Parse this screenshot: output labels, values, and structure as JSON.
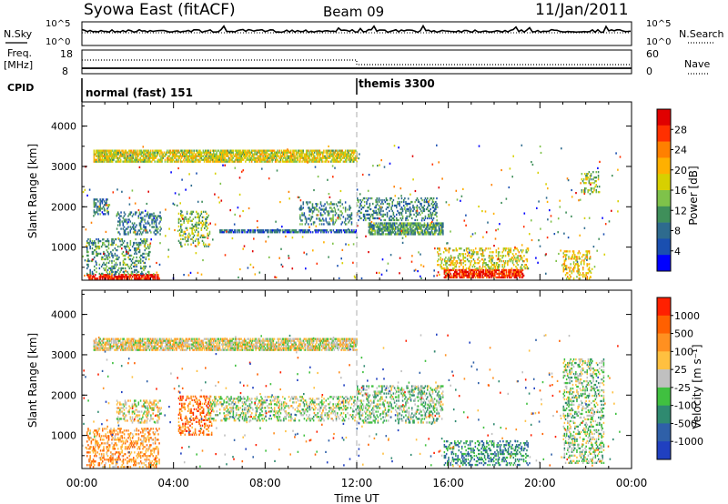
{
  "header": {
    "station": "Syowa East (fitACF)",
    "beam": "Beam 09",
    "date": "11/Jan/2011"
  },
  "top_panels": {
    "nsky_label": "N.Sky",
    "nsearch_label": "N.Search",
    "noise_ticks": [
      "10^5",
      "10^0"
    ],
    "freq_label_1": "Freq.",
    "freq_label_2": "[MHz]",
    "freq_ticks": [
      "18",
      "8"
    ],
    "nave_label": "Nave",
    "nave_ticks": [
      "60",
      "0"
    ],
    "cpid_label": "CPID",
    "cpid_segments": [
      {
        "name": "normal (fast) 151",
        "start_hour": 0
      },
      {
        "name": "themis 3300",
        "start_hour": 12
      }
    ]
  },
  "chart_data": [
    {
      "type": "heatmap",
      "quantity": "power",
      "xlabel": "",
      "ylabel": "Slant Range [km]",
      "xlim": [
        0,
        24
      ],
      "ylim": [
        180,
        4600
      ],
      "yticks": [
        "1000",
        "2000",
        "3000",
        "4000"
      ],
      "colorbar_label": "Power [dB]",
      "colorbar_ticks": [
        "28",
        "24",
        "20",
        "16",
        "12",
        "8",
        "4"
      ],
      "colorbar_colors": [
        "#0000ff",
        "#1a4fb0",
        "#2e6b8e",
        "#3f8f5a",
        "#7fc24a",
        "#d7d000",
        "#ffb000",
        "#ff8000",
        "#ff3000",
        "#e00000"
      ],
      "echo_regions": [
        {
          "t0": 0.2,
          "t1": 3.4,
          "r0": 200,
          "r1": 320,
          "level": 0.92
        },
        {
          "t0": 0.2,
          "t1": 3.0,
          "r0": 320,
          "r1": 1200,
          "level": 0.35
        },
        {
          "t0": 1.5,
          "t1": 3.5,
          "r0": 1300,
          "r1": 1900,
          "level": 0.28
        },
        {
          "t0": 4.2,
          "t1": 5.6,
          "r0": 1000,
          "r1": 1900,
          "level": 0.45
        },
        {
          "t0": 0.5,
          "t1": 1.2,
          "r0": 1800,
          "r1": 2200,
          "level": 0.25
        },
        {
          "t0": 6.0,
          "t1": 12.0,
          "r0": 1350,
          "r1": 1450,
          "level": 0.22
        },
        {
          "t0": 9.5,
          "t1": 11.8,
          "r0": 1550,
          "r1": 2150,
          "level": 0.3
        },
        {
          "t0": 12.0,
          "t1": 15.5,
          "r0": 1650,
          "r1": 2250,
          "level": 0.3
        },
        {
          "t0": 12.5,
          "t1": 15.8,
          "r0": 1300,
          "r1": 1600,
          "level": 0.35
        },
        {
          "t0": 15.8,
          "t1": 19.3,
          "r0": 230,
          "r1": 450,
          "level": 0.9
        },
        {
          "t0": 15.5,
          "t1": 19.5,
          "r0": 450,
          "r1": 1000,
          "level": 0.55
        },
        {
          "t0": 21.0,
          "t1": 22.2,
          "r0": 200,
          "r1": 900,
          "level": 0.6
        },
        {
          "t0": 21.8,
          "t1": 22.6,
          "r0": 2300,
          "r1": 2900,
          "level": 0.45
        },
        {
          "t0": 0.5,
          "t1": 12.0,
          "r0": 3100,
          "r1": 3400,
          "level": 0.55
        }
      ]
    },
    {
      "type": "heatmap",
      "quantity": "velocity",
      "xlabel": "Time UT",
      "ylabel": "Slant Range [km]",
      "xlim": [
        0,
        24
      ],
      "ylim": [
        180,
        4600
      ],
      "xticks": [
        "00:00",
        "04:00",
        "08:00",
        "12:00",
        "16:00",
        "20:00",
        "00:00"
      ],
      "yticks": [
        "1000",
        "2000",
        "3000",
        "4000"
      ],
      "colorbar_label": "Velocity [m s⁻¹]",
      "colorbar_ticks": [
        "1000",
        "500",
        "100",
        "25",
        "-25",
        "-100",
        "-500",
        "-1000"
      ],
      "colorbar_colors": [
        "#2040c0",
        "#2f60a8",
        "#2f8a70",
        "#40c040",
        "#c0c0c0",
        "#ffc040",
        "#ff9020",
        "#ff6000",
        "#ff2000"
      ],
      "echo_regions": [
        {
          "t0": 0.2,
          "t1": 3.4,
          "r0": 200,
          "r1": 1200,
          "level": 0.7
        },
        {
          "t0": 4.2,
          "t1": 5.7,
          "r0": 1000,
          "r1": 2000,
          "level": 0.78
        },
        {
          "t0": 1.5,
          "t1": 3.5,
          "r0": 1300,
          "r1": 1900,
          "level": 0.55
        },
        {
          "t0": 5.5,
          "t1": 12.0,
          "r0": 1350,
          "r1": 2000,
          "level": 0.48
        },
        {
          "t0": 12.0,
          "t1": 15.8,
          "r0": 1300,
          "r1": 2250,
          "level": 0.42
        },
        {
          "t0": 15.8,
          "t1": 19.5,
          "r0": 250,
          "r1": 900,
          "level": 0.28
        },
        {
          "t0": 21.0,
          "t1": 22.8,
          "r0": 300,
          "r1": 2900,
          "level": 0.45
        },
        {
          "t0": 0.5,
          "t1": 12.0,
          "r0": 3100,
          "r1": 3400,
          "level": 0.55
        }
      ]
    }
  ]
}
